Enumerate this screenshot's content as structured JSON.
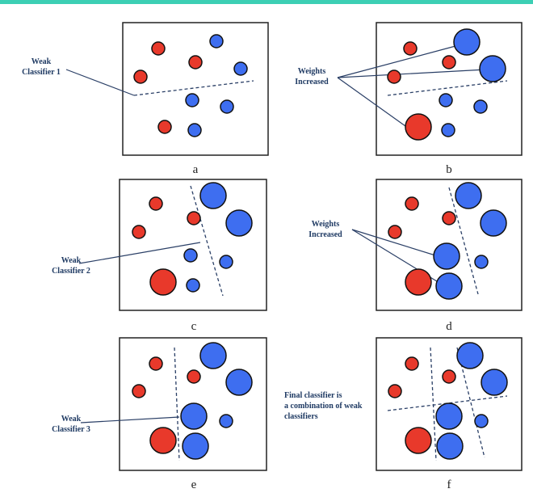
{
  "colors": {
    "accent_bar": "#3ccfb4",
    "red_point": "#e8392b",
    "blue_point": "#3e6ef0",
    "stroke": "#111111",
    "line": "#2a3f66",
    "text": "#1f3a63"
  },
  "captions": [
    "a",
    "b",
    "c",
    "d",
    "e",
    "f"
  ],
  "labels": {
    "weak1_line1": "Weak",
    "weak1_line2": "Classifier 1",
    "weights_b_line1": "Weights",
    "weights_b_line2": "Increased",
    "weak2_line1": "Weak",
    "weak2_line2": "Classifier 2",
    "weights_d_line1": "Weights",
    "weights_d_line2": "Increased",
    "weak3_line1": "Weak",
    "weak3_line2": "Classifier 3",
    "final_line1": "Final classifier is",
    "final_line2": "a combination of weak",
    "final_line3": "classifiers"
  }
}
